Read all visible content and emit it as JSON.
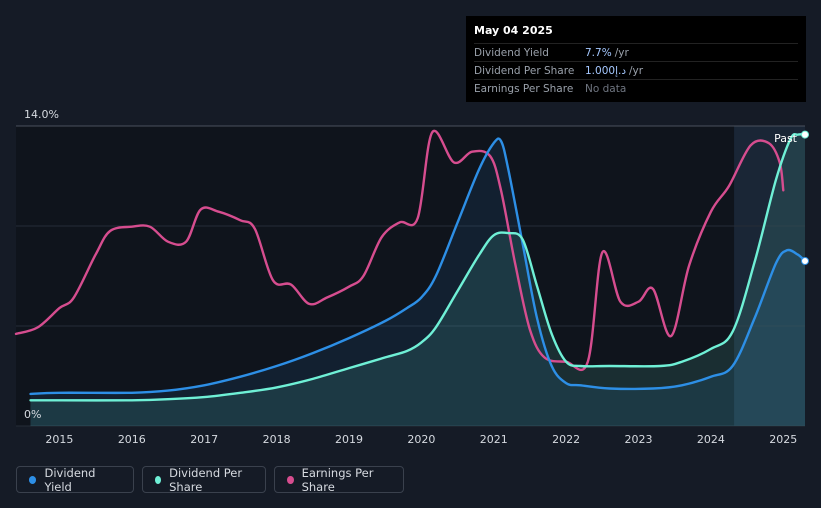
{
  "tooltip": {
    "date": "May 04 2025",
    "rows": [
      {
        "label": "Dividend Yield",
        "value": "7.7%",
        "unit": "/yr"
      },
      {
        "label": "Dividend Per Share",
        "value": "1.000د.إ",
        "unit": "/yr"
      },
      {
        "label": "Earnings Per Share",
        "value": "No data",
        "unit": ""
      }
    ]
  },
  "past_label": "Past",
  "legend": [
    {
      "label": "Dividend Yield",
      "color": "#2d8fe6"
    },
    {
      "label": "Dividend Per Share",
      "color": "#6ff0d6"
    },
    {
      "label": "Earnings Per Share",
      "color": "#d64d8f"
    }
  ],
  "chart_data": {
    "type": "line",
    "y_tick_labels": [
      "14.0%",
      "0%"
    ],
    "ylim": [
      0,
      14
    ],
    "xlim": [
      2014.4,
      2025.3
    ],
    "x_ticks": [
      2015,
      2016,
      2017,
      2018,
      2019,
      2020,
      2021,
      2022,
      2023,
      2024,
      2025
    ],
    "forecast_start": 2024.32,
    "series": [
      {
        "name": "Dividend Yield",
        "color": "#2d8fe6",
        "points": [
          [
            2014.6,
            1.5
          ],
          [
            2015,
            1.55
          ],
          [
            2016,
            1.55
          ],
          [
            2016.5,
            1.65
          ],
          [
            2017,
            1.9
          ],
          [
            2017.5,
            2.3
          ],
          [
            2018,
            2.8
          ],
          [
            2018.5,
            3.4
          ],
          [
            2019,
            4.1
          ],
          [
            2019.5,
            4.9
          ],
          [
            2019.8,
            5.5
          ],
          [
            2020,
            6.0
          ],
          [
            2020.2,
            7.0
          ],
          [
            2020.5,
            9.5
          ],
          [
            2020.8,
            12.0
          ],
          [
            2021.0,
            13.2
          ],
          [
            2021.1,
            13.3
          ],
          [
            2021.2,
            12.0
          ],
          [
            2021.4,
            8.5
          ],
          [
            2021.6,
            5.0
          ],
          [
            2021.8,
            2.8
          ],
          [
            2022.0,
            2.0
          ],
          [
            2022.2,
            1.9
          ],
          [
            2022.6,
            1.75
          ],
          [
            2023.2,
            1.75
          ],
          [
            2023.6,
            1.9
          ],
          [
            2024.0,
            2.3
          ],
          [
            2024.3,
            2.8
          ],
          [
            2024.6,
            5.0
          ],
          [
            2024.9,
            7.6
          ],
          [
            2025.05,
            8.2
          ],
          [
            2025.2,
            8.0
          ],
          [
            2025.3,
            7.7
          ]
        ]
      },
      {
        "name": "Dividend Per Share",
        "color": "#6ff0d6",
        "points": [
          [
            2014.6,
            1.2
          ],
          [
            2015,
            1.2
          ],
          [
            2016,
            1.2
          ],
          [
            2016.5,
            1.25
          ],
          [
            2017,
            1.35
          ],
          [
            2017.5,
            1.55
          ],
          [
            2018,
            1.8
          ],
          [
            2018.5,
            2.2
          ],
          [
            2019,
            2.7
          ],
          [
            2019.5,
            3.2
          ],
          [
            2019.8,
            3.5
          ],
          [
            2020,
            3.9
          ],
          [
            2020.2,
            4.6
          ],
          [
            2020.5,
            6.3
          ],
          [
            2020.8,
            8.0
          ],
          [
            2021.0,
            8.9
          ],
          [
            2021.2,
            9.0
          ],
          [
            2021.4,
            8.7
          ],
          [
            2021.6,
            6.5
          ],
          [
            2021.8,
            4.3
          ],
          [
            2022.0,
            3.0
          ],
          [
            2022.2,
            2.8
          ],
          [
            2022.6,
            2.8
          ],
          [
            2023.3,
            2.8
          ],
          [
            2023.6,
            3.0
          ],
          [
            2024.0,
            3.6
          ],
          [
            2024.3,
            4.4
          ],
          [
            2024.6,
            7.6
          ],
          [
            2024.9,
            11.5
          ],
          [
            2025.1,
            13.4
          ],
          [
            2025.2,
            13.6
          ],
          [
            2025.3,
            13.6
          ]
        ]
      },
      {
        "name": "Earnings Per Share",
        "color": "#d64d8f",
        "points": [
          [
            2014.4,
            4.3
          ],
          [
            2014.7,
            4.6
          ],
          [
            2015.0,
            5.5
          ],
          [
            2015.2,
            6.0
          ],
          [
            2015.5,
            8.0
          ],
          [
            2015.7,
            9.1
          ],
          [
            2016.0,
            9.3
          ],
          [
            2016.25,
            9.3
          ],
          [
            2016.5,
            8.6
          ],
          [
            2016.75,
            8.6
          ],
          [
            2016.95,
            10.1
          ],
          [
            2017.2,
            10.0
          ],
          [
            2017.5,
            9.6
          ],
          [
            2017.7,
            9.2
          ],
          [
            2017.95,
            6.8
          ],
          [
            2018.2,
            6.6
          ],
          [
            2018.45,
            5.7
          ],
          [
            2018.7,
            6.0
          ],
          [
            2019.0,
            6.5
          ],
          [
            2019.2,
            7.0
          ],
          [
            2019.45,
            8.8
          ],
          [
            2019.7,
            9.5
          ],
          [
            2019.95,
            9.7
          ],
          [
            2020.15,
            13.7
          ],
          [
            2020.45,
            12.3
          ],
          [
            2020.7,
            12.8
          ],
          [
            2020.95,
            12.6
          ],
          [
            2021.1,
            11.0
          ],
          [
            2021.3,
            7.5
          ],
          [
            2021.5,
            4.5
          ],
          [
            2021.7,
            3.2
          ],
          [
            2022.0,
            3.0
          ],
          [
            2022.3,
            3.0
          ],
          [
            2022.5,
            8.1
          ],
          [
            2022.75,
            5.8
          ],
          [
            2023.0,
            5.8
          ],
          [
            2023.2,
            6.4
          ],
          [
            2023.45,
            4.2
          ],
          [
            2023.7,
            7.5
          ],
          [
            2024.0,
            10.0
          ],
          [
            2024.25,
            11.2
          ],
          [
            2024.55,
            13.1
          ],
          [
            2024.8,
            13.2
          ],
          [
            2024.95,
            12.3
          ],
          [
            2025.0,
            11.0
          ]
        ]
      }
    ]
  }
}
